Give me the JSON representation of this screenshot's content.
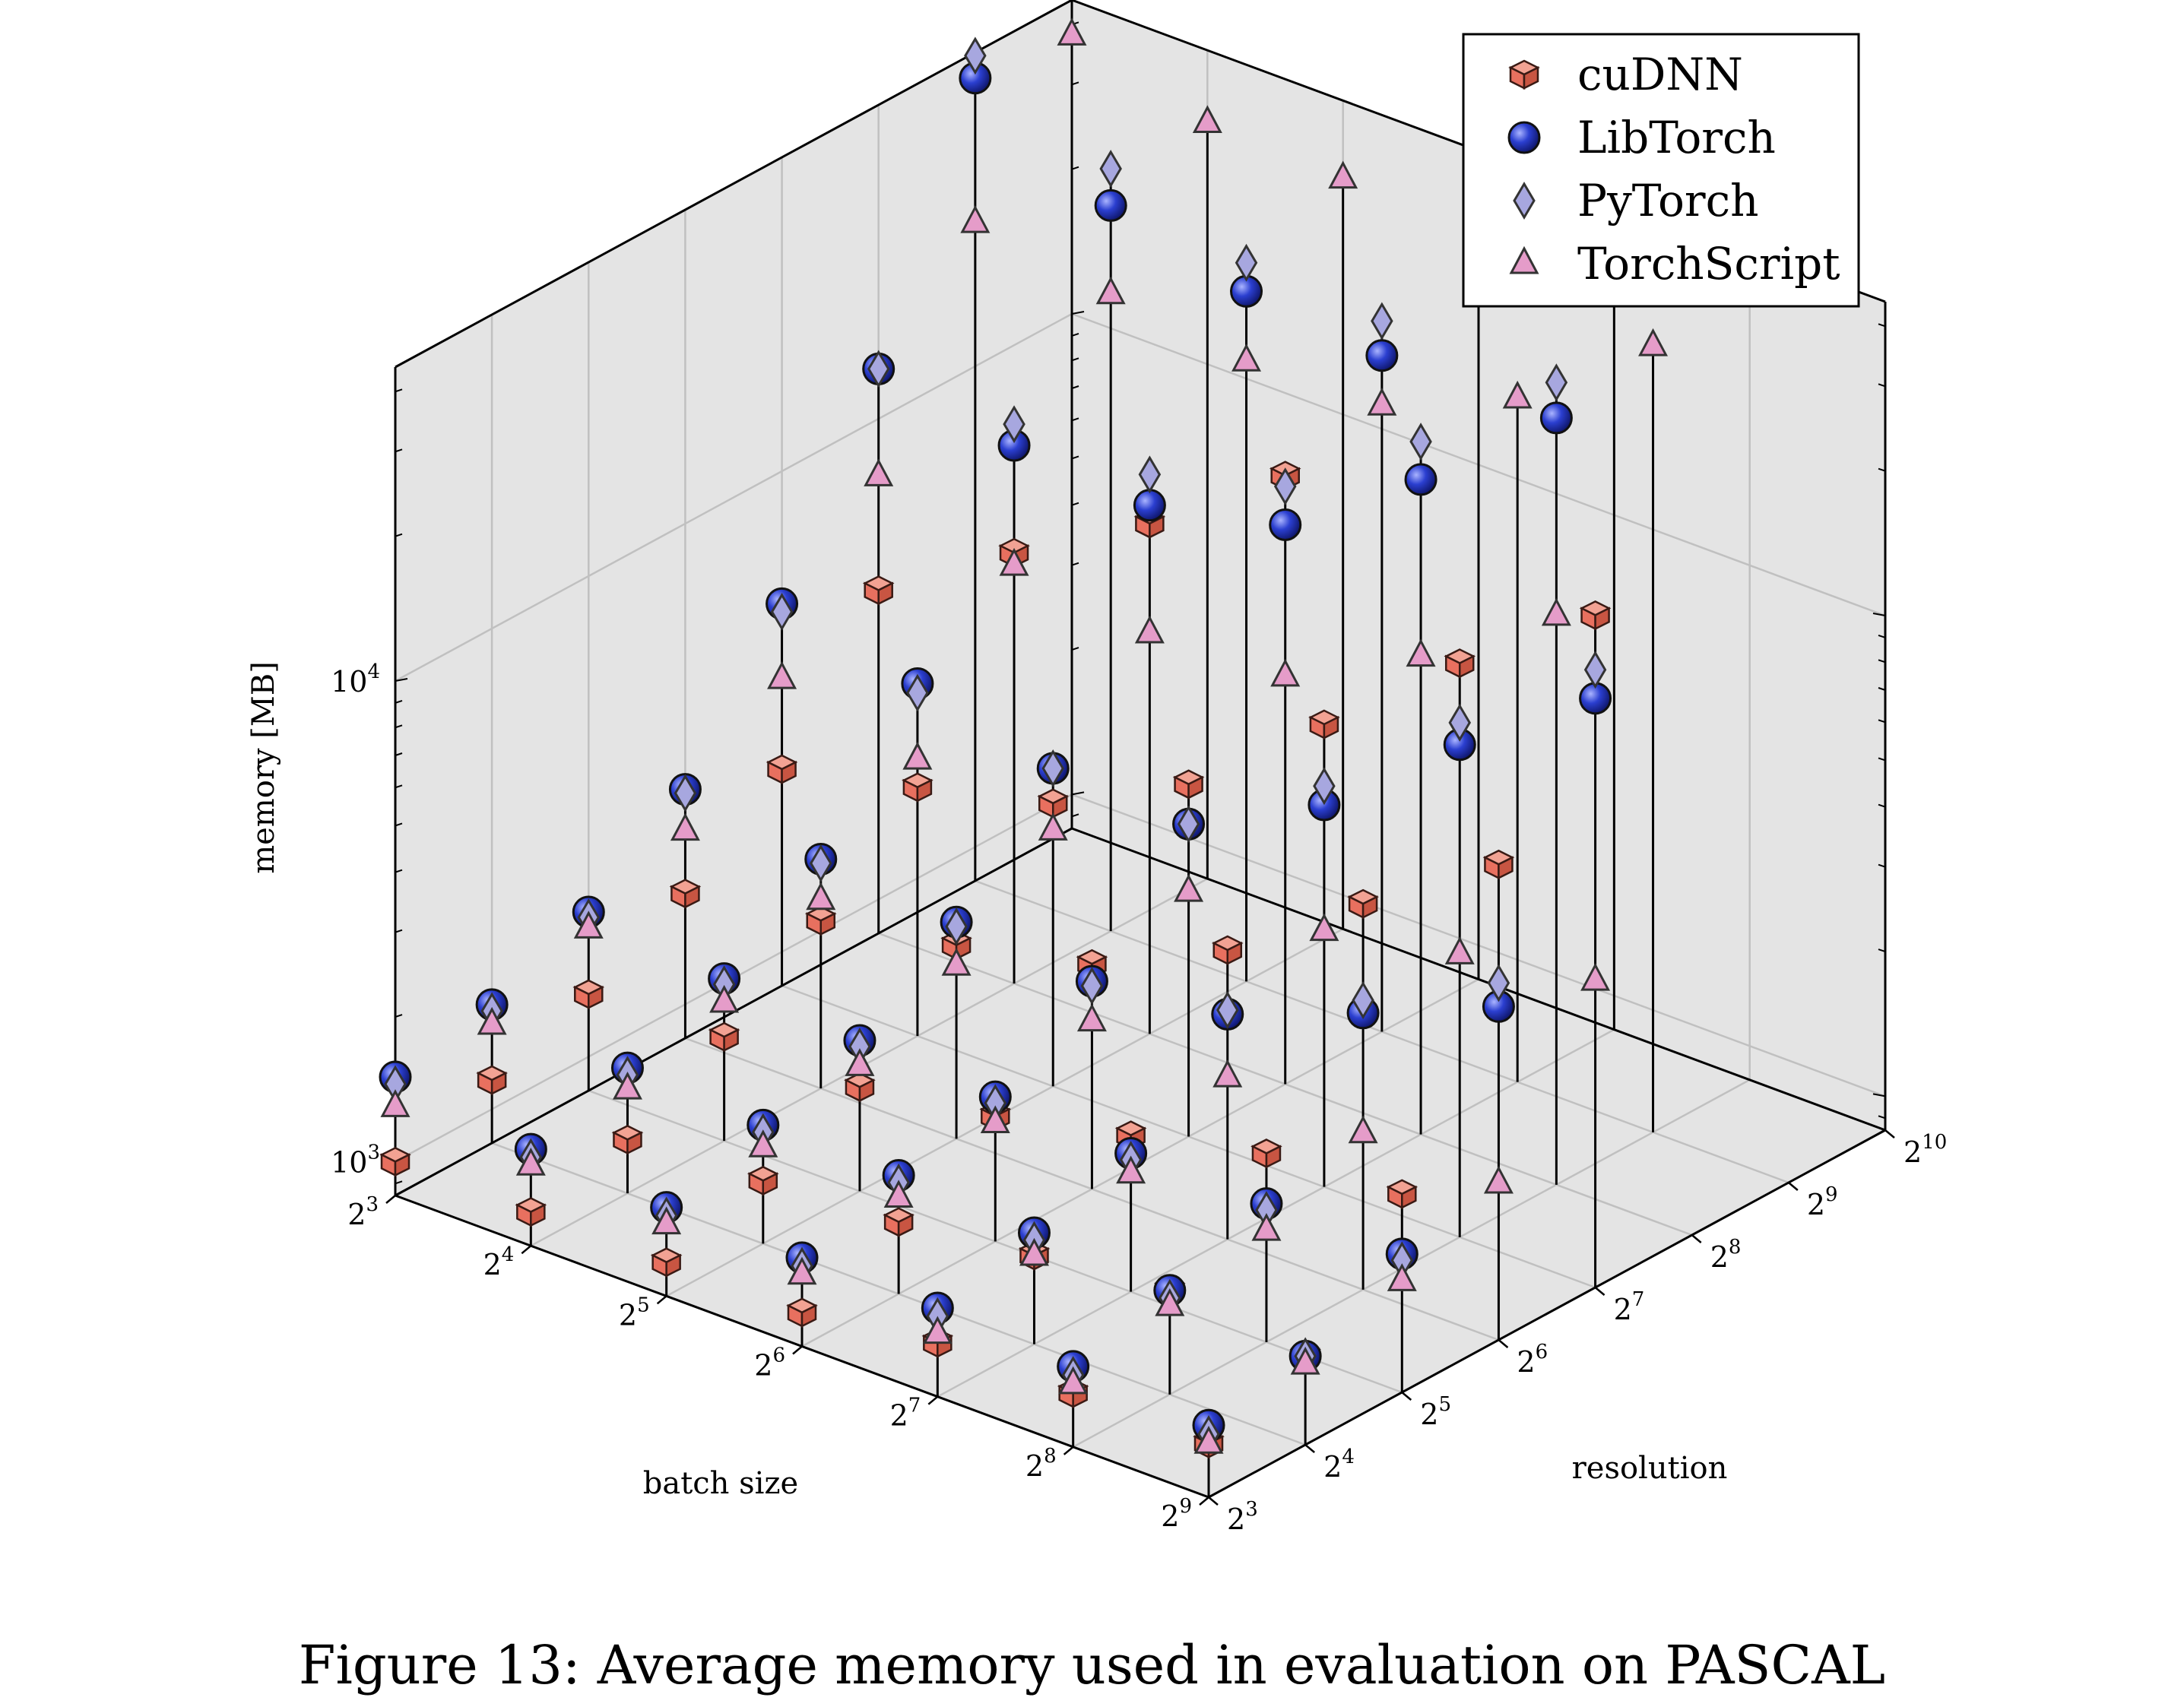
{
  "caption": "Figure 13: Average memory used in evaluation on PASCAL",
  "chart_data": {
    "type": "scatter3d",
    "xlabel": "batch size",
    "ylabel": "resolution",
    "zlabel": "memory [MB]",
    "x_axis": {
      "scale": "log2",
      "range": [
        8,
        512
      ],
      "ticks": [
        8,
        16,
        32,
        64,
        128,
        256,
        512
      ],
      "tick_labels": [
        "2^3",
        "2^4",
        "2^5",
        "2^6",
        "2^7",
        "2^8",
        "2^9"
      ]
    },
    "y_axis": {
      "scale": "log2",
      "range": [
        8,
        1024
      ],
      "ticks": [
        8,
        16,
        32,
        64,
        128,
        256,
        512,
        1024
      ],
      "tick_labels": [
        "2^3",
        "2^4",
        "2^5",
        "2^6",
        "2^7",
        "2^8",
        "2^9",
        "2^10"
      ]
    },
    "z_axis": {
      "scale": "log10",
      "range": [
        850,
        45000
      ],
      "ticks": [
        1000,
        10000
      ],
      "tick_labels": [
        "10^3",
        "10^4"
      ]
    },
    "grid": true,
    "legend_position": "top-right",
    "series": [
      {
        "name": "cuDNN",
        "marker": "cube",
        "color": "#e8705f",
        "points": [
          {
            "x": 8,
            "y": 8,
            "z": 1000
          },
          {
            "x": 16,
            "y": 8,
            "z": 1000
          },
          {
            "x": 32,
            "y": 8,
            "z": 1000
          },
          {
            "x": 64,
            "y": 8,
            "z": 1000
          },
          {
            "x": 128,
            "y": 8,
            "z": 1100
          },
          {
            "x": 256,
            "y": 8,
            "z": 1100
          },
          {
            "x": 512,
            "y": 8,
            "z": 1100
          },
          {
            "x": 8,
            "y": 16,
            "z": 1150
          },
          {
            "x": 16,
            "y": 16,
            "z": 1100
          },
          {
            "x": 32,
            "y": 16,
            "z": 1150
          },
          {
            "x": 64,
            "y": 16,
            "z": 1200
          },
          {
            "x": 128,
            "y": 16,
            "z": 1300
          },
          {
            "x": 256,
            "y": 16,
            "z": 1400
          },
          {
            "x": 512,
            "y": 16,
            "z": 1300
          },
          {
            "x": 8,
            "y": 32,
            "z": 1350
          },
          {
            "x": 16,
            "y": 32,
            "z": 1400
          },
          {
            "x": 32,
            "y": 32,
            "z": 1400
          },
          {
            "x": 64,
            "y": 32,
            "z": 1550
          },
          {
            "x": 128,
            "y": 32,
            "z": 1800
          },
          {
            "x": 256,
            "y": 32,
            "z": 2100
          },
          {
            "x": 512,
            "y": 32,
            "z": 2200
          },
          {
            "x": 8,
            "y": 64,
            "z": 1700
          },
          {
            "x": 16,
            "y": 64,
            "z": 1900
          },
          {
            "x": 32,
            "y": 64,
            "z": 2150
          },
          {
            "x": 64,
            "y": 64,
            "z": 2500
          },
          {
            "x": 128,
            "y": 64,
            "z": 3400
          },
          {
            "x": 256,
            "y": 64,
            "z": 5400
          },
          {
            "x": 512,
            "y": 64,
            "z": 8300
          },
          {
            "x": 8,
            "y": 128,
            "z": 2400
          },
          {
            "x": 16,
            "y": 128,
            "z": 2800
          },
          {
            "x": 32,
            "y": 128,
            "z": 3300
          },
          {
            "x": 64,
            "y": 128,
            "z": 4600
          },
          {
            "x": 128,
            "y": 128,
            "z": 7800
          },
          {
            "x": 256,
            "y": 128,
            "z": 13300
          },
          {
            "x": 512,
            "y": 128,
            "z": 21300
          },
          {
            "x": 8,
            "y": 256,
            "z": 4400
          },
          {
            "x": 16,
            "y": 256,
            "z": 6700
          },
          {
            "x": 32,
            "y": 256,
            "z": 9800
          },
          {
            "x": 64,
            "y": 256,
            "z": 15700
          }
        ]
      },
      {
        "name": "LibTorch",
        "marker": "sphere",
        "color": "#2b3fd0",
        "points": [
          {
            "x": 8,
            "y": 8,
            "z": 1500
          },
          {
            "x": 16,
            "y": 8,
            "z": 1350
          },
          {
            "x": 32,
            "y": 8,
            "z": 1300
          },
          {
            "x": 64,
            "y": 8,
            "z": 1300
          },
          {
            "x": 128,
            "y": 8,
            "z": 1300
          },
          {
            "x": 256,
            "y": 8,
            "z": 1250
          },
          {
            "x": 512,
            "y": 8,
            "z": 1200
          },
          {
            "x": 8,
            "y": 16,
            "z": 1650
          },
          {
            "x": 16,
            "y": 16,
            "z": 1550
          },
          {
            "x": 32,
            "y": 16,
            "z": 1500
          },
          {
            "x": 64,
            "y": 16,
            "z": 1500
          },
          {
            "x": 128,
            "y": 16,
            "z": 1450
          },
          {
            "x": 256,
            "y": 16,
            "z": 1400
          },
          {
            "x": 512,
            "y": 16,
            "z": 1300
          },
          {
            "x": 8,
            "y": 32,
            "z": 2000
          },
          {
            "x": 16,
            "y": 32,
            "z": 1850
          },
          {
            "x": 32,
            "y": 32,
            "z": 1750
          },
          {
            "x": 64,
            "y": 32,
            "z": 1700
          },
          {
            "x": 128,
            "y": 32,
            "z": 1650
          },
          {
            "x": 256,
            "y": 32,
            "z": 1650
          },
          {
            "x": 512,
            "y": 32,
            "z": 1650
          },
          {
            "x": 8,
            "y": 64,
            "z": 2800
          },
          {
            "x": 16,
            "y": 64,
            "z": 2550
          },
          {
            "x": 32,
            "y": 64,
            "z": 2400
          },
          {
            "x": 64,
            "y": 64,
            "z": 2300
          },
          {
            "x": 128,
            "y": 64,
            "z": 2500
          },
          {
            "x": 256,
            "y": 64,
            "z": 3200
          },
          {
            "x": 512,
            "y": 64,
            "z": 4200
          },
          {
            "x": 8,
            "y": 128,
            "z": 5300
          },
          {
            "x": 16,
            "y": 128,
            "z": 4600
          },
          {
            "x": 32,
            "y": 128,
            "z": 3900
          },
          {
            "x": 64,
            "y": 128,
            "z": 3800
          },
          {
            "x": 128,
            "y": 128,
            "z": 5300
          },
          {
            "x": 256,
            "y": 128,
            "z": 9000
          },
          {
            "x": 512,
            "y": 128,
            "z": 14300
          },
          {
            "x": 8,
            "y": 256,
            "z": 12700
          },
          {
            "x": 16,
            "y": 256,
            "z": 11200
          },
          {
            "x": 32,
            "y": 256,
            "z": 10700
          },
          {
            "x": 64,
            "y": 256,
            "z": 12400
          },
          {
            "x": 128,
            "y": 256,
            "z": 19600
          },
          {
            "x": 256,
            "y": 256,
            "z": 33500
          },
          {
            "x": 8,
            "y": 512,
            "z": 39800
          },
          {
            "x": 16,
            "y": 512,
            "z": 27500
          },
          {
            "x": 32,
            "y": 512,
            "z": 23200
          },
          {
            "x": 64,
            "y": 512,
            "z": 21700
          }
        ]
      },
      {
        "name": "PyTorch",
        "marker": "diamond",
        "color": "#a7a7df",
        "points": [
          {
            "x": 8,
            "y": 8,
            "z": 1450
          },
          {
            "x": 16,
            "y": 8,
            "z": 1300
          },
          {
            "x": 32,
            "y": 8,
            "z": 1250
          },
          {
            "x": 64,
            "y": 8,
            "z": 1250
          },
          {
            "x": 128,
            "y": 8,
            "z": 1250
          },
          {
            "x": 256,
            "y": 8,
            "z": 1200
          },
          {
            "x": 512,
            "y": 8,
            "z": 1150
          },
          {
            "x": 8,
            "y": 16,
            "z": 1600
          },
          {
            "x": 16,
            "y": 16,
            "z": 1500
          },
          {
            "x": 32,
            "y": 16,
            "z": 1450
          },
          {
            "x": 64,
            "y": 16,
            "z": 1450
          },
          {
            "x": 128,
            "y": 16,
            "z": 1400
          },
          {
            "x": 256,
            "y": 16,
            "z": 1350
          },
          {
            "x": 512,
            "y": 16,
            "z": 1300
          },
          {
            "x": 8,
            "y": 32,
            "z": 1950
          },
          {
            "x": 16,
            "y": 32,
            "z": 1800
          },
          {
            "x": 32,
            "y": 32,
            "z": 1700
          },
          {
            "x": 64,
            "y": 32,
            "z": 1650
          },
          {
            "x": 128,
            "y": 32,
            "z": 1600
          },
          {
            "x": 256,
            "y": 32,
            "z": 1600
          },
          {
            "x": 512,
            "y": 32,
            "z": 1600
          },
          {
            "x": 8,
            "y": 64,
            "z": 2750
          },
          {
            "x": 16,
            "y": 64,
            "z": 2500
          },
          {
            "x": 32,
            "y": 64,
            "z": 2350
          },
          {
            "x": 64,
            "y": 64,
            "z": 2250
          },
          {
            "x": 128,
            "y": 64,
            "z": 2550
          },
          {
            "x": 256,
            "y": 64,
            "z": 3400
          },
          {
            "x": 512,
            "y": 64,
            "z": 4700
          },
          {
            "x": 8,
            "y": 128,
            "z": 5100
          },
          {
            "x": 16,
            "y": 128,
            "z": 4400
          },
          {
            "x": 32,
            "y": 128,
            "z": 3900
          },
          {
            "x": 64,
            "y": 128,
            "z": 3800
          },
          {
            "x": 128,
            "y": 128,
            "z": 5800
          },
          {
            "x": 256,
            "y": 128,
            "z": 10000
          },
          {
            "x": 512,
            "y": 128,
            "z": 16400
          },
          {
            "x": 8,
            "y": 256,
            "z": 12700
          },
          {
            "x": 16,
            "y": 256,
            "z": 12400
          },
          {
            "x": 32,
            "y": 256,
            "z": 12400
          },
          {
            "x": 64,
            "y": 256,
            "z": 14900
          },
          {
            "x": 128,
            "y": 256,
            "z": 23500
          },
          {
            "x": 256,
            "y": 256,
            "z": 39700
          },
          {
            "x": 8,
            "y": 512,
            "z": 44300
          },
          {
            "x": 16,
            "y": 512,
            "z": 32800
          },
          {
            "x": 32,
            "y": 512,
            "z": 26600
          },
          {
            "x": 64,
            "y": 512,
            "z": 25600
          }
        ]
      },
      {
        "name": "TorchScript",
        "marker": "triangle",
        "color": "#e59cc9",
        "points": [
          {
            "x": 8,
            "y": 8,
            "z": 1300
          },
          {
            "x": 16,
            "y": 8,
            "z": 1250
          },
          {
            "x": 32,
            "y": 8,
            "z": 1200
          },
          {
            "x": 64,
            "y": 8,
            "z": 1200
          },
          {
            "x": 128,
            "y": 8,
            "z": 1150
          },
          {
            "x": 256,
            "y": 8,
            "z": 1150
          },
          {
            "x": 512,
            "y": 8,
            "z": 1100
          },
          {
            "x": 8,
            "y": 16,
            "z": 1500
          },
          {
            "x": 16,
            "y": 16,
            "z": 1400
          },
          {
            "x": 32,
            "y": 16,
            "z": 1350
          },
          {
            "x": 64,
            "y": 16,
            "z": 1350
          },
          {
            "x": 128,
            "y": 16,
            "z": 1300
          },
          {
            "x": 256,
            "y": 16,
            "z": 1300
          },
          {
            "x": 512,
            "y": 16,
            "z": 1250
          },
          {
            "x": 8,
            "y": 32,
            "z": 1850
          },
          {
            "x": 16,
            "y": 32,
            "z": 1650
          },
          {
            "x": 32,
            "y": 32,
            "z": 1550
          },
          {
            "x": 64,
            "y": 32,
            "z": 1500
          },
          {
            "x": 128,
            "y": 32,
            "z": 1500
          },
          {
            "x": 256,
            "y": 32,
            "z": 1450
          },
          {
            "x": 512,
            "y": 32,
            "z": 1450
          },
          {
            "x": 8,
            "y": 64,
            "z": 2300
          },
          {
            "x": 16,
            "y": 64,
            "z": 2100
          },
          {
            "x": 32,
            "y": 64,
            "z": 1950
          },
          {
            "x": 64,
            "y": 64,
            "z": 1900
          },
          {
            "x": 128,
            "y": 64,
            "z": 1850
          },
          {
            "x": 256,
            "y": 64,
            "z": 1800
          },
          {
            "x": 512,
            "y": 64,
            "z": 1800
          },
          {
            "x": 8,
            "y": 128,
            "z": 3700
          },
          {
            "x": 16,
            "y": 128,
            "z": 3200
          },
          {
            "x": 32,
            "y": 128,
            "z": 2900
          },
          {
            "x": 64,
            "y": 128,
            "z": 2750
          },
          {
            "x": 128,
            "y": 128,
            "z": 2900
          },
          {
            "x": 256,
            "y": 128,
            "z": 3300
          },
          {
            "x": 512,
            "y": 128,
            "z": 3700
          },
          {
            "x": 8,
            "y": 256,
            "z": 7600
          },
          {
            "x": 16,
            "y": 256,
            "z": 6300
          },
          {
            "x": 32,
            "y": 256,
            "z": 5800
          },
          {
            "x": 64,
            "y": 256,
            "z": 6000
          },
          {
            "x": 128,
            "y": 256,
            "z": 8400
          },
          {
            "x": 256,
            "y": 256,
            "z": 13000
          },
          {
            "x": 8,
            "y": 512,
            "z": 19900
          },
          {
            "x": 16,
            "y": 512,
            "z": 18000
          },
          {
            "x": 32,
            "y": 512,
            "z": 16600
          },
          {
            "x": 64,
            "y": 512,
            "z": 17100
          },
          {
            "x": 128,
            "y": 512,
            "z": 22500
          },
          {
            "x": 256,
            "y": 512,
            "z": 36800
          },
          {
            "x": 8,
            "y": 1024,
            "z": 38000
          },
          {
            "x": 16,
            "y": 1024,
            "z": 31800
          },
          {
            "x": 32,
            "y": 1024,
            "z": 31000
          },
          {
            "x": 64,
            "y": 1024,
            "z": 29100
          },
          {
            "x": 128,
            "y": 1024,
            "z": 33700
          }
        ]
      }
    ]
  }
}
